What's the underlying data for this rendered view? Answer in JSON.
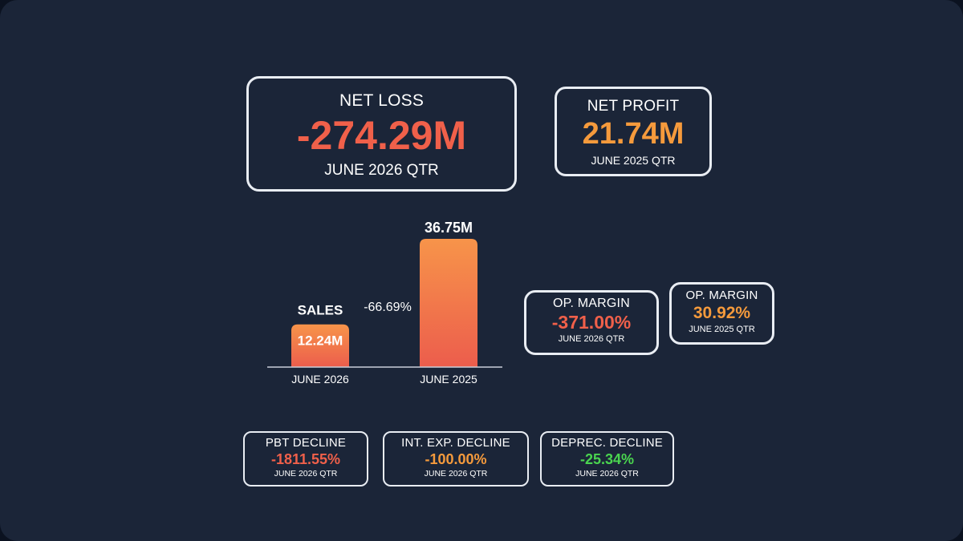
{
  "net_loss": {
    "label": "NET LOSS",
    "value": "-274.29M",
    "period": "JUNE 2026 QTR"
  },
  "net_profit": {
    "label": "NET PROFIT",
    "value": "21.74M",
    "period": "JUNE 2025 QTR"
  },
  "op_margin_2026": {
    "label": "OP. MARGIN",
    "value": "-371.00%",
    "period": "JUNE 2026 QTR"
  },
  "op_margin_2025": {
    "label": "OP. MARGIN",
    "value": "30.92%",
    "period": "JUNE 2025 QTR"
  },
  "pbt_decline": {
    "label": "PBT DECLINE",
    "value": "-1811.55%",
    "period": "JUNE 2026 QTR"
  },
  "int_exp_decline": {
    "label": "INT. EXP. DECLINE",
    "value": "-100.00%",
    "period": "JUNE 2026 QTR"
  },
  "deprec_decline": {
    "label": "DEPREC. DECLINE",
    "value": "-25.34%",
    "period": "JUNE 2026 QTR"
  },
  "colors": {
    "background": "#1b2538",
    "negative": "#f0604a",
    "positive_orange": "#f59a3c",
    "positive_green": "#4ad44f",
    "bar_top": "#f7944a",
    "bar_bottom": "#ec5d4c"
  },
  "chart_data": {
    "type": "bar",
    "title": "SALES",
    "categories": [
      "JUNE 2026",
      "JUNE 2025"
    ],
    "values": [
      12.24,
      36.75
    ],
    "value_labels": [
      "12.24M",
      "36.75M"
    ],
    "change_label": "-66.69%",
    "unit": "M",
    "ylim": [
      0,
      36.75
    ],
    "grid": false
  }
}
